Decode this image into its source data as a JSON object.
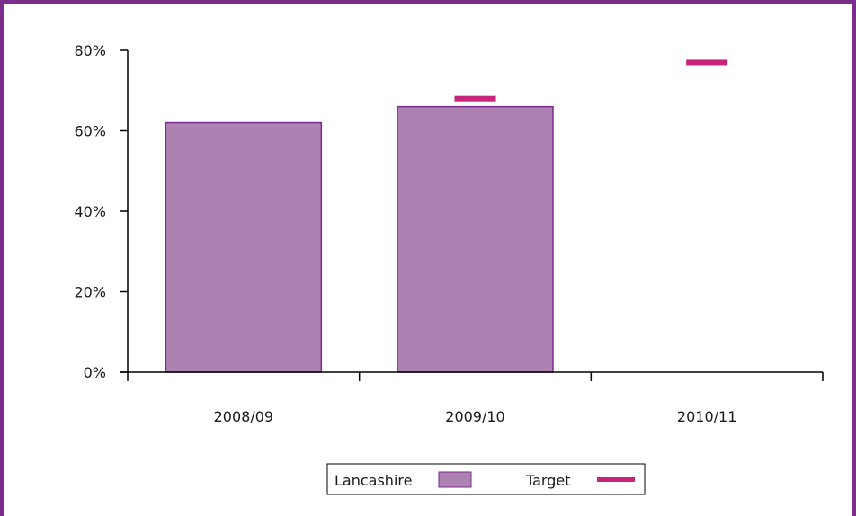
{
  "colors": {
    "frame": "#7b2d8b",
    "bar_fill": "#ad82b3",
    "bar_stroke": "#7b2d8b",
    "target": "#c8247a",
    "axis": "#000000"
  },
  "chart_data": {
    "type": "bar",
    "title": "",
    "xlabel": "",
    "ylabel": "",
    "categories": [
      "2008/09",
      "2009/10",
      "2010/11"
    ],
    "ylim": [
      0,
      80
    ],
    "yticks": [
      0,
      20,
      40,
      60,
      80
    ],
    "ytick_labels": [
      "0%",
      "20%",
      "40%",
      "60%",
      "80%"
    ],
    "grid": false,
    "legend_position": "bottom-center",
    "series": [
      {
        "name": "Lancashire",
        "kind": "bar",
        "values": [
          62,
          66,
          null
        ]
      },
      {
        "name": "Target",
        "kind": "marker",
        "values": [
          null,
          68,
          77
        ]
      }
    ]
  }
}
